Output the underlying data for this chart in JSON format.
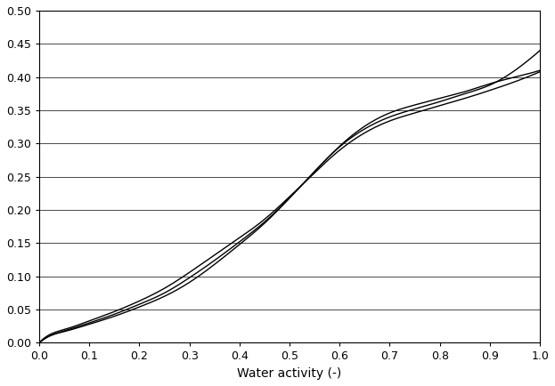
{
  "title": "",
  "xlabel": "Water activity (-)",
  "ylabel": "",
  "xlim": [
    0.0,
    1.0
  ],
  "ylim": [
    0.0,
    0.5
  ],
  "xticks": [
    0.0,
    0.1,
    0.2,
    0.3,
    0.4,
    0.5,
    0.6,
    0.7,
    0.8,
    0.9,
    1.0
  ],
  "yticks": [
    0.0,
    0.05,
    0.1,
    0.15,
    0.2,
    0.25,
    0.3,
    0.35,
    0.4,
    0.45,
    0.5
  ],
  "line_color": "#000000",
  "background_color": "#ffffff",
  "curves": [
    {
      "x": [
        0.0,
        0.02,
        0.05,
        0.1,
        0.15,
        0.2,
        0.25,
        0.3,
        0.35,
        0.4,
        0.45,
        0.5,
        0.55,
        0.6,
        0.65,
        0.7,
        0.75,
        0.8,
        0.85,
        0.9,
        0.95,
        1.0
      ],
      "y": [
        0.0,
        0.01,
        0.018,
        0.03,
        0.043,
        0.058,
        0.075,
        0.098,
        0.124,
        0.152,
        0.182,
        0.218,
        0.258,
        0.295,
        0.322,
        0.34,
        0.352,
        0.363,
        0.375,
        0.388,
        0.41,
        0.44
      ]
    },
    {
      "x": [
        0.0,
        0.02,
        0.05,
        0.1,
        0.15,
        0.2,
        0.25,
        0.3,
        0.35,
        0.4,
        0.45,
        0.5,
        0.55,
        0.6,
        0.65,
        0.7,
        0.75,
        0.8,
        0.85,
        0.9,
        0.95,
        1.0
      ],
      "y": [
        0.0,
        0.01,
        0.017,
        0.028,
        0.04,
        0.054,
        0.07,
        0.091,
        0.118,
        0.148,
        0.18,
        0.218,
        0.258,
        0.296,
        0.326,
        0.346,
        0.358,
        0.368,
        0.378,
        0.39,
        0.4,
        0.41
      ]
    },
    {
      "x": [
        0.0,
        0.02,
        0.05,
        0.1,
        0.15,
        0.2,
        0.25,
        0.3,
        0.35,
        0.4,
        0.45,
        0.5,
        0.55,
        0.6,
        0.65,
        0.7,
        0.75,
        0.8,
        0.85,
        0.9,
        0.95,
        1.0
      ],
      "y": [
        0.0,
        0.012,
        0.02,
        0.033,
        0.047,
        0.063,
        0.082,
        0.106,
        0.132,
        0.158,
        0.186,
        0.22,
        0.256,
        0.29,
        0.316,
        0.334,
        0.346,
        0.357,
        0.368,
        0.38,
        0.393,
        0.408
      ]
    }
  ]
}
